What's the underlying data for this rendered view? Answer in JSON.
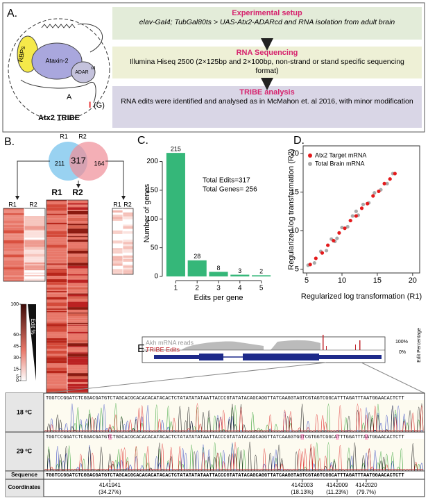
{
  "panel_a": {
    "label": "A.",
    "diagram": {
      "rbps": "RBPs",
      "protein": "Ataxin-2",
      "adar": "ADAR",
      "adar_sup": "cd",
      "base_a": "A",
      "base_i": "I",
      "base_g": "(G)",
      "caption": "Atx2 TRIBE"
    },
    "steps": [
      {
        "title": "Experimental setup",
        "text": "elav-Gal4; TubGal80ts > UAS-Atx2-ADARcd and RNA isolation from adult brain"
      },
      {
        "title": "RNA Sequencing",
        "text": "Illumina Hiseq 2500 (2×125bp and 2×100bp, non-strand or stand specific sequencing format)"
      },
      {
        "title": "TRIBE analysis",
        "text": "RNA edits were identified and analysed as in McMahon et. al 2016, with minor modification"
      }
    ]
  },
  "panel_b": {
    "label": "B.",
    "venn": {
      "r1": "R1",
      "r2": "R2",
      "only_r1": 211,
      "both": 317,
      "only_r2": 164
    },
    "heatmap_labels": [
      "R1",
      "R2",
      "R1",
      "R2",
      "R1",
      "R2"
    ],
    "legend": {
      "title": "Edit %",
      "ticks": [
        100,
        60,
        45,
        30,
        15,
        5,
        0
      ]
    }
  },
  "chart_data": [
    {
      "type": "bar",
      "label": "C.",
      "categories": [
        "1",
        "2",
        "3",
        "4",
        "5"
      ],
      "values": [
        215,
        28,
        8,
        3,
        2
      ],
      "color": "#35b779",
      "ylim": [
        0,
        220
      ],
      "yticks": [
        0,
        50,
        100,
        150,
        200
      ],
      "xlabel": "Edits per gene",
      "ylabel": "Number of genes",
      "annotations": [
        "Total Edits=317",
        "Total Genes= 256"
      ]
    },
    {
      "type": "scatter",
      "label": "D.",
      "xlabel": "Regularized log transformation (R1)",
      "ylabel": "Regularized log transformation (R2)",
      "xlim": [
        4.5,
        21
      ],
      "ylim": [
        4.5,
        21
      ],
      "xticks": [
        5,
        10,
        15,
        20
      ],
      "yticks": [
        5,
        10,
        15,
        20
      ],
      "legend": "upper left",
      "series": [
        {
          "name": "Atx2 Target mRNA",
          "color": "#e41a1c",
          "x": [
            5.5,
            6.3,
            7.2,
            8.0,
            8.8,
            9.6,
            10.4,
            11.2,
            12.0,
            12.8,
            13.6,
            14.4,
            15.2,
            16.0,
            16.8,
            17.5
          ],
          "values": [
            5.6,
            6.4,
            7.1,
            8.1,
            8.7,
            9.7,
            10.3,
            11.3,
            11.9,
            12.9,
            13.5,
            14.5,
            15.1,
            16.1,
            16.7,
            17.4
          ]
        },
        {
          "name": "Total Brain mRNA",
          "color": "#aaaaaa",
          "x": [
            5.2,
            6.1,
            7.0,
            7.8,
            8.5,
            9.3,
            10.0,
            10.8,
            11.5,
            12.3,
            13.0,
            13.8,
            14.6,
            15.5,
            16.4,
            17.2,
            9.0,
            12.0
          ],
          "values": [
            5.5,
            5.8,
            7.3,
            7.4,
            8.9,
            9.0,
            10.4,
            10.5,
            11.9,
            12.0,
            13.4,
            13.6,
            14.9,
            15.3,
            16.1,
            17.4,
            8.6,
            12.5
          ]
        }
      ]
    }
  ],
  "panel_e": {
    "label": "E.",
    "track_reads": "Akh mRNA reads",
    "track_edits": "TRIBE Edits",
    "scale_top": "100%",
    "scale_bottom": "0%",
    "scale_title": "Edit Percentage",
    "rows": [
      {
        "label": "18 ºC",
        "sequence": "TGGTCCGGATCTCGGACGATGTCTAGCACGCACACACATACACTCTATATATATAATTACCCGTATATACAGCAGGTTATCAAGGTAGTCGTAGTCGGCATTTAGATTTAATGGAACACTCTT"
      },
      {
        "label": "29 ºC",
        "sequence": "TGGTCCGGATCTCGGACGATGTCTGGCACGCACACACATACACTCTATATATATAATTACCCGTATATACAGCAGGTTATCAAGGTGGTCGTGGTCGGCATTTGGATTTAATGGAACACTCTT"
      }
    ],
    "sequence_row": {
      "label": "Sequence",
      "sequence": "TGGTCCGGATCTCGGACGATGTCTAGCACGCACACACATACACTCTATATATATAATTACCCGTATATACAGCAGGTTATCAAGGTAGTCGTAGTCGGCATTTAGATTTAATGGAACACTCTT"
    },
    "coordinates_row": {
      "label": "Coordinates",
      "sites": [
        {
          "position": "4141941",
          "percent": "(34.27%)"
        },
        {
          "position": "4142003",
          "percent": "(18.13%)"
        },
        {
          "position": "4142009",
          "percent": "(11.23%)"
        },
        {
          "position": "4142020",
          "percent": "(79.7%)"
        }
      ]
    }
  }
}
